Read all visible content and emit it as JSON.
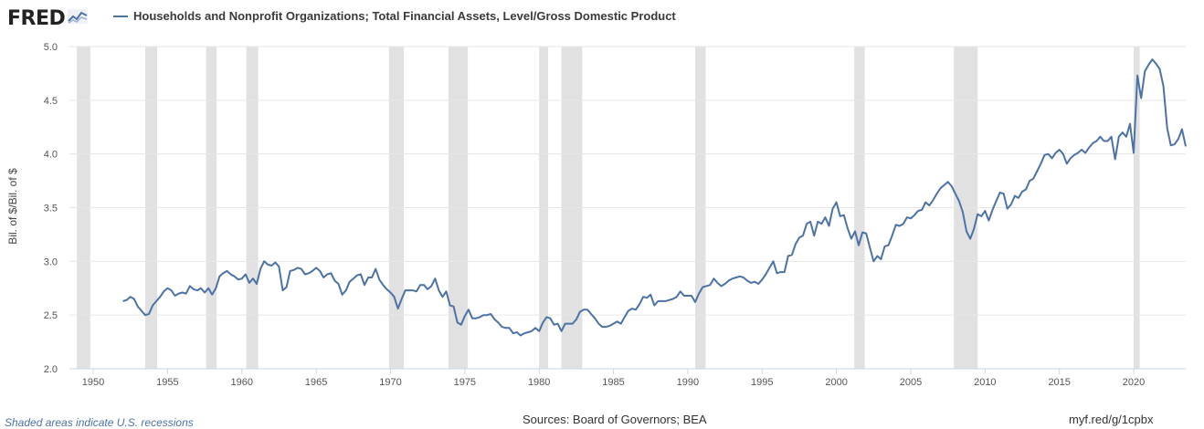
{
  "header": {
    "logo_text": "FRED",
    "logo_icon": "chart-line-icon"
  },
  "chart_data": {
    "type": "line",
    "title": "",
    "series": [
      {
        "name": "Households and Nonprofit Organizations; Total Financial Assets, Level/Gross Domestic Product",
        "color": "#4c72a6",
        "points": [
          [
            1952.0,
            2.63
          ],
          [
            1952.25,
            2.64
          ],
          [
            1952.5,
            2.67
          ],
          [
            1952.75,
            2.65
          ],
          [
            1953.0,
            2.58
          ],
          [
            1953.25,
            2.54
          ],
          [
            1953.5,
            2.5
          ],
          [
            1953.75,
            2.51
          ],
          [
            1954.0,
            2.59
          ],
          [
            1954.25,
            2.63
          ],
          [
            1954.5,
            2.67
          ],
          [
            1954.75,
            2.72
          ],
          [
            1955.0,
            2.75
          ],
          [
            1955.25,
            2.73
          ],
          [
            1955.5,
            2.68
          ],
          [
            1955.75,
            2.7
          ],
          [
            1956.0,
            2.71
          ],
          [
            1956.25,
            2.7
          ],
          [
            1956.5,
            2.77
          ],
          [
            1956.75,
            2.74
          ],
          [
            1957.0,
            2.73
          ],
          [
            1957.25,
            2.75
          ],
          [
            1957.5,
            2.71
          ],
          [
            1957.75,
            2.75
          ],
          [
            1958.0,
            2.69
          ],
          [
            1958.25,
            2.75
          ],
          [
            1958.5,
            2.86
          ],
          [
            1958.75,
            2.89
          ],
          [
            1959.0,
            2.91
          ],
          [
            1959.25,
            2.88
          ],
          [
            1959.5,
            2.86
          ],
          [
            1959.75,
            2.83
          ],
          [
            1960.0,
            2.84
          ],
          [
            1960.25,
            2.88
          ],
          [
            1960.5,
            2.8
          ],
          [
            1960.75,
            2.84
          ],
          [
            1961.0,
            2.79
          ],
          [
            1961.25,
            2.93
          ],
          [
            1961.5,
            3.0
          ],
          [
            1961.75,
            2.97
          ],
          [
            1962.0,
            2.96
          ],
          [
            1962.25,
            2.99
          ],
          [
            1962.5,
            2.95
          ],
          [
            1962.75,
            2.73
          ],
          [
            1963.0,
            2.76
          ],
          [
            1963.25,
            2.91
          ],
          [
            1963.5,
            2.92
          ],
          [
            1963.75,
            2.94
          ],
          [
            1964.0,
            2.93
          ],
          [
            1964.25,
            2.88
          ],
          [
            1964.5,
            2.89
          ],
          [
            1964.75,
            2.91
          ],
          [
            1965.0,
            2.94
          ],
          [
            1965.25,
            2.91
          ],
          [
            1965.5,
            2.85
          ],
          [
            1965.75,
            2.88
          ],
          [
            1966.0,
            2.89
          ],
          [
            1966.25,
            2.82
          ],
          [
            1966.5,
            2.79
          ],
          [
            1966.75,
            2.69
          ],
          [
            1967.0,
            2.73
          ],
          [
            1967.25,
            2.81
          ],
          [
            1967.5,
            2.84
          ],
          [
            1967.75,
            2.87
          ],
          [
            1968.0,
            2.88
          ],
          [
            1968.25,
            2.78
          ],
          [
            1968.5,
            2.85
          ],
          [
            1968.75,
            2.85
          ],
          [
            1969.0,
            2.93
          ],
          [
            1969.25,
            2.83
          ],
          [
            1969.5,
            2.78
          ],
          [
            1969.75,
            2.74
          ],
          [
            1970.0,
            2.71
          ],
          [
            1970.25,
            2.67
          ],
          [
            1970.5,
            2.56
          ],
          [
            1970.75,
            2.65
          ],
          [
            1971.0,
            2.73
          ],
          [
            1971.25,
            2.73
          ],
          [
            1971.5,
            2.73
          ],
          [
            1971.75,
            2.72
          ],
          [
            1972.0,
            2.78
          ],
          [
            1972.25,
            2.78
          ],
          [
            1972.5,
            2.74
          ],
          [
            1972.75,
            2.77
          ],
          [
            1973.0,
            2.84
          ],
          [
            1973.25,
            2.73
          ],
          [
            1973.5,
            2.67
          ],
          [
            1973.75,
            2.72
          ],
          [
            1974.0,
            2.59
          ],
          [
            1974.25,
            2.58
          ],
          [
            1974.5,
            2.43
          ],
          [
            1974.75,
            2.41
          ],
          [
            1975.0,
            2.49
          ],
          [
            1975.25,
            2.55
          ],
          [
            1975.5,
            2.47
          ],
          [
            1975.75,
            2.47
          ],
          [
            1976.0,
            2.48
          ],
          [
            1976.25,
            2.5
          ],
          [
            1976.5,
            2.5
          ],
          [
            1976.75,
            2.51
          ],
          [
            1977.0,
            2.46
          ],
          [
            1977.25,
            2.43
          ],
          [
            1977.5,
            2.39
          ],
          [
            1977.75,
            2.38
          ],
          [
            1978.0,
            2.38
          ],
          [
            1978.25,
            2.33
          ],
          [
            1978.5,
            2.34
          ],
          [
            1978.75,
            2.31
          ],
          [
            1979.0,
            2.33
          ],
          [
            1979.25,
            2.34
          ],
          [
            1979.5,
            2.35
          ],
          [
            1979.75,
            2.38
          ],
          [
            1980.0,
            2.35
          ],
          [
            1980.25,
            2.43
          ],
          [
            1980.5,
            2.48
          ],
          [
            1980.75,
            2.47
          ],
          [
            1981.0,
            2.41
          ],
          [
            1981.25,
            2.42
          ],
          [
            1981.5,
            2.35
          ],
          [
            1981.75,
            2.42
          ],
          [
            1982.0,
            2.42
          ],
          [
            1982.25,
            2.42
          ],
          [
            1982.5,
            2.46
          ],
          [
            1982.75,
            2.53
          ],
          [
            1983.0,
            2.55
          ],
          [
            1983.25,
            2.55
          ],
          [
            1983.5,
            2.51
          ],
          [
            1983.75,
            2.47
          ],
          [
            1984.0,
            2.42
          ],
          [
            1984.25,
            2.39
          ],
          [
            1984.5,
            2.39
          ],
          [
            1984.75,
            2.4
          ],
          [
            1985.0,
            2.42
          ],
          [
            1985.25,
            2.44
          ],
          [
            1985.5,
            2.42
          ],
          [
            1985.75,
            2.48
          ],
          [
            1986.0,
            2.54
          ],
          [
            1986.25,
            2.56
          ],
          [
            1986.5,
            2.55
          ],
          [
            1986.75,
            2.6
          ],
          [
            1987.0,
            2.67
          ],
          [
            1987.25,
            2.66
          ],
          [
            1987.5,
            2.69
          ],
          [
            1987.75,
            2.59
          ],
          [
            1988.0,
            2.63
          ],
          [
            1988.25,
            2.63
          ],
          [
            1988.5,
            2.63
          ],
          [
            1988.75,
            2.64
          ],
          [
            1989.0,
            2.65
          ],
          [
            1989.25,
            2.67
          ],
          [
            1989.5,
            2.72
          ],
          [
            1989.75,
            2.68
          ],
          [
            1990.0,
            2.68
          ],
          [
            1990.25,
            2.68
          ],
          [
            1990.5,
            2.62
          ],
          [
            1990.75,
            2.7
          ],
          [
            1991.0,
            2.76
          ],
          [
            1991.25,
            2.77
          ],
          [
            1991.5,
            2.78
          ],
          [
            1991.75,
            2.84
          ],
          [
            1992.0,
            2.8
          ],
          [
            1992.25,
            2.77
          ],
          [
            1992.5,
            2.79
          ],
          [
            1992.75,
            2.82
          ],
          [
            1993.0,
            2.84
          ],
          [
            1993.25,
            2.85
          ],
          [
            1993.5,
            2.86
          ],
          [
            1993.75,
            2.85
          ],
          [
            1994.0,
            2.82
          ],
          [
            1994.25,
            2.8
          ],
          [
            1994.5,
            2.81
          ],
          [
            1994.75,
            2.79
          ],
          [
            1995.0,
            2.83
          ],
          [
            1995.25,
            2.88
          ],
          [
            1995.5,
            2.94
          ],
          [
            1995.75,
            3.0
          ],
          [
            1996.0,
            2.89
          ],
          [
            1996.25,
            2.9
          ],
          [
            1996.5,
            2.9
          ],
          [
            1996.75,
            3.05
          ],
          [
            1997.0,
            3.06
          ],
          [
            1997.25,
            3.16
          ],
          [
            1997.5,
            3.22
          ],
          [
            1997.75,
            3.24
          ],
          [
            1998.0,
            3.35
          ],
          [
            1998.25,
            3.37
          ],
          [
            1998.5,
            3.24
          ],
          [
            1998.75,
            3.37
          ],
          [
            1999.0,
            3.35
          ],
          [
            1999.25,
            3.41
          ],
          [
            1999.5,
            3.33
          ],
          [
            1999.75,
            3.49
          ],
          [
            2000.0,
            3.55
          ],
          [
            2000.25,
            3.42
          ],
          [
            2000.5,
            3.43
          ],
          [
            2000.75,
            3.31
          ],
          [
            2001.0,
            3.21
          ],
          [
            2001.25,
            3.28
          ],
          [
            2001.5,
            3.15
          ],
          [
            2001.75,
            3.27
          ],
          [
            2002.0,
            3.26
          ],
          [
            2002.25,
            3.13
          ],
          [
            2002.5,
            3.0
          ],
          [
            2002.75,
            3.05
          ],
          [
            2003.0,
            3.02
          ],
          [
            2003.25,
            3.14
          ],
          [
            2003.5,
            3.15
          ],
          [
            2003.75,
            3.24
          ],
          [
            2004.0,
            3.34
          ],
          [
            2004.25,
            3.33
          ],
          [
            2004.5,
            3.35
          ],
          [
            2004.75,
            3.41
          ],
          [
            2005.0,
            3.4
          ],
          [
            2005.25,
            3.43
          ],
          [
            2005.5,
            3.47
          ],
          [
            2005.75,
            3.48
          ],
          [
            2006.0,
            3.55
          ],
          [
            2006.25,
            3.52
          ],
          [
            2006.5,
            3.57
          ],
          [
            2006.75,
            3.63
          ],
          [
            2007.0,
            3.68
          ],
          [
            2007.25,
            3.71
          ],
          [
            2007.5,
            3.74
          ],
          [
            2007.75,
            3.7
          ],
          [
            2008.0,
            3.63
          ],
          [
            2008.25,
            3.56
          ],
          [
            2008.5,
            3.46
          ],
          [
            2008.75,
            3.28
          ],
          [
            2009.0,
            3.21
          ],
          [
            2009.25,
            3.3
          ],
          [
            2009.5,
            3.44
          ],
          [
            2009.75,
            3.42
          ],
          [
            2010.0,
            3.47
          ],
          [
            2010.25,
            3.38
          ],
          [
            2010.5,
            3.48
          ],
          [
            2010.75,
            3.56
          ],
          [
            2011.0,
            3.64
          ],
          [
            2011.25,
            3.63
          ],
          [
            2011.5,
            3.49
          ],
          [
            2011.75,
            3.53
          ],
          [
            2012.0,
            3.61
          ],
          [
            2012.25,
            3.59
          ],
          [
            2012.5,
            3.65
          ],
          [
            2012.75,
            3.67
          ],
          [
            2013.0,
            3.75
          ],
          [
            2013.25,
            3.77
          ],
          [
            2013.5,
            3.84
          ],
          [
            2013.75,
            3.91
          ],
          [
            2014.0,
            3.99
          ],
          [
            2014.25,
            4.0
          ],
          [
            2014.5,
            3.96
          ],
          [
            2014.75,
            4.01
          ],
          [
            2015.0,
            4.04
          ],
          [
            2015.25,
            4.0
          ],
          [
            2015.5,
            3.91
          ],
          [
            2015.75,
            3.96
          ],
          [
            2016.0,
            3.99
          ],
          [
            2016.25,
            4.01
          ],
          [
            2016.5,
            4.04
          ],
          [
            2016.75,
            4.01
          ],
          [
            2017.0,
            4.06
          ],
          [
            2017.25,
            4.1
          ],
          [
            2017.5,
            4.12
          ],
          [
            2017.75,
            4.16
          ],
          [
            2018.0,
            4.12
          ],
          [
            2018.25,
            4.12
          ],
          [
            2018.5,
            4.16
          ],
          [
            2018.75,
            3.95
          ],
          [
            2019.0,
            4.16
          ],
          [
            2019.25,
            4.2
          ],
          [
            2019.5,
            4.16
          ],
          [
            2019.75,
            4.28
          ],
          [
            2020.0,
            4.01
          ],
          [
            2020.25,
            4.73
          ],
          [
            2020.5,
            4.52
          ],
          [
            2020.75,
            4.77
          ],
          [
            2021.0,
            4.83
          ],
          [
            2021.25,
            4.88
          ],
          [
            2021.5,
            4.84
          ],
          [
            2021.75,
            4.79
          ],
          [
            2022.0,
            4.63
          ],
          [
            2022.25,
            4.24
          ],
          [
            2022.5,
            4.08
          ],
          [
            2022.75,
            4.09
          ],
          [
            2023.0,
            4.14
          ],
          [
            2023.25,
            4.23
          ],
          [
            2023.5,
            4.07
          ]
        ]
      }
    ],
    "xlim": [
      1948.4,
      2023.5
    ],
    "ylim": [
      2.0,
      5.0
    ],
    "x_ticks": [
      1950,
      1955,
      1960,
      1965,
      1970,
      1975,
      1980,
      1985,
      1990,
      1995,
      2000,
      2005,
      2010,
      2015,
      2020
    ],
    "y_ticks": [
      2.0,
      2.5,
      3.0,
      3.5,
      4.0,
      4.5,
      5.0
    ],
    "y_tick_labels": [
      "2.0",
      "2.5",
      "3.0",
      "3.5",
      "4.0",
      "4.5",
      "5.0"
    ],
    "ylabel": "Bil. of $/Bil. of $",
    "xlabel": "",
    "recessions": [
      [
        1948.9,
        1949.8
      ],
      [
        1953.5,
        1954.3
      ],
      [
        1957.6,
        1958.3
      ],
      [
        1960.3,
        1961.1
      ],
      [
        1969.9,
        1970.9
      ],
      [
        1973.9,
        1975.2
      ],
      [
        1980.0,
        1980.6
      ],
      [
        1981.5,
        1982.9
      ],
      [
        1990.5,
        1991.2
      ],
      [
        2001.2,
        2001.9
      ],
      [
        2007.9,
        2009.5
      ],
      [
        2020.0,
        2020.4
      ]
    ],
    "grid": true,
    "legend_position": "top"
  },
  "footer": {
    "note": "Shaded areas indicate U.S. recessions",
    "sources": "Sources: Board of Governors; BEA",
    "link": "myf.red/g/1cpbx"
  }
}
